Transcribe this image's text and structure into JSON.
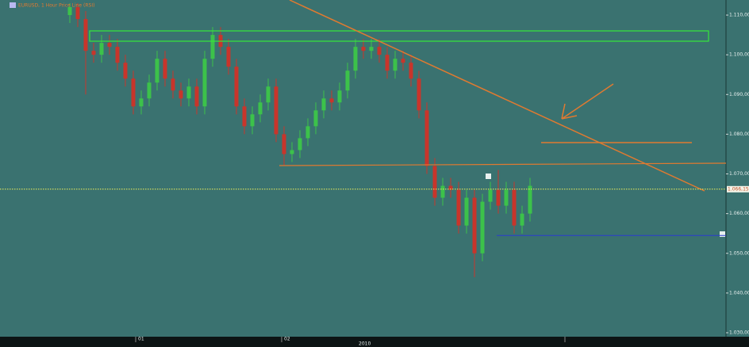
{
  "chart_data": {
    "type": "candlestick",
    "title": "EURUSD, 1 Hour Price Line (RSI)",
    "open": [
      1.11,
      1.112,
      1.109,
      1.101,
      1.1,
      1.103,
      1.102,
      1.098,
      1.094,
      1.087,
      1.089,
      1.093,
      1.099,
      1.094,
      1.091,
      1.089,
      1.092,
      1.087,
      1.099,
      1.105,
      1.102,
      1.097,
      1.087,
      1.082,
      1.085,
      1.088,
      1.092,
      1.08,
      1.075,
      1.076,
      1.079,
      1.082,
      1.086,
      1.089,
      1.088,
      1.091,
      1.096,
      1.102,
      1.101,
      1.102,
      1.1,
      1.096,
      1.099,
      1.098,
      1.094,
      1.086,
      1.072,
      1.064,
      1.067,
      1.066,
      1.057,
      1.064,
      1.05,
      1.063,
      1.066,
      1.062,
      1.066,
      1.057,
      1.06
    ],
    "high": [
      1.113,
      1.113,
      1.111,
      1.103,
      1.105,
      1.105,
      1.104,
      1.1,
      1.096,
      1.091,
      1.095,
      1.101,
      1.101,
      1.096,
      1.093,
      1.094,
      1.094,
      1.101,
      1.107,
      1.107,
      1.104,
      1.099,
      1.089,
      1.087,
      1.09,
      1.094,
      1.094,
      1.082,
      1.078,
      1.081,
      1.084,
      1.088,
      1.091,
      1.091,
      1.093,
      1.098,
      1.104,
      1.104,
      1.104,
      1.104,
      1.102,
      1.101,
      1.101,
      1.1,
      1.096,
      1.088,
      1.074,
      1.069,
      1.069,
      1.068,
      1.066,
      1.066,
      1.065,
      1.068,
      1.071,
      1.068,
      1.068,
      1.062,
      1.069
    ],
    "low": [
      1.108,
      1.107,
      1.09,
      1.098,
      1.098,
      1.1,
      1.096,
      1.092,
      1.085,
      1.085,
      1.087,
      1.091,
      1.092,
      1.089,
      1.087,
      1.087,
      1.085,
      1.085,
      1.097,
      1.1,
      1.095,
      1.085,
      1.08,
      1.08,
      1.083,
      1.086,
      1.078,
      1.072,
      1.073,
      1.074,
      1.077,
      1.08,
      1.084,
      1.086,
      1.086,
      1.089,
      1.094,
      1.099,
      1.099,
      1.098,
      1.094,
      1.094,
      1.096,
      1.092,
      1.084,
      1.07,
      1.062,
      1.062,
      1.064,
      1.055,
      1.055,
      1.044,
      1.048,
      1.061,
      1.06,
      1.06,
      1.055,
      1.055,
      1.058
    ],
    "close": [
      1.112,
      1.109,
      1.101,
      1.1,
      1.103,
      1.102,
      1.098,
      1.094,
      1.087,
      1.089,
      1.093,
      1.099,
      1.094,
      1.091,
      1.089,
      1.092,
      1.087,
      1.099,
      1.105,
      1.102,
      1.097,
      1.087,
      1.082,
      1.085,
      1.088,
      1.092,
      1.08,
      1.075,
      1.076,
      1.079,
      1.082,
      1.086,
      1.089,
      1.088,
      1.091,
      1.096,
      1.102,
      1.101,
      1.102,
      1.1,
      1.096,
      1.099,
      1.098,
      1.094,
      1.086,
      1.072,
      1.064,
      1.067,
      1.066,
      1.057,
      1.064,
      1.05,
      1.063,
      1.066,
      1.062,
      1.066,
      1.057,
      1.06,
      1.067
    ],
    "up_color": "#3cc24a",
    "down_color": "#c8352b",
    "ylim": [
      1.029,
      1.113
    ],
    "yticks": [
      {
        "value": 1.03,
        "label": "1.030,00"
      },
      {
        "value": 1.04,
        "label": "1.040,00"
      },
      {
        "value": 1.05,
        "label": "1.050,00"
      },
      {
        "value": 1.06,
        "label": "1.060,00"
      },
      {
        "value": 1.07,
        "label": "1.070,00"
      },
      {
        "value": 1.08,
        "label": "1.080,00"
      },
      {
        "value": 1.09,
        "label": "1.090,00"
      },
      {
        "value": 1.1,
        "label": "1.100,00"
      },
      {
        "value": 1.11,
        "label": "1.110,00"
      }
    ],
    "x_labels": [
      "01",
      "02",
      "2010"
    ],
    "current_price": {
      "value": 1.06615,
      "label": "1.066,15"
    },
    "level_line": 1.0545
  }
}
